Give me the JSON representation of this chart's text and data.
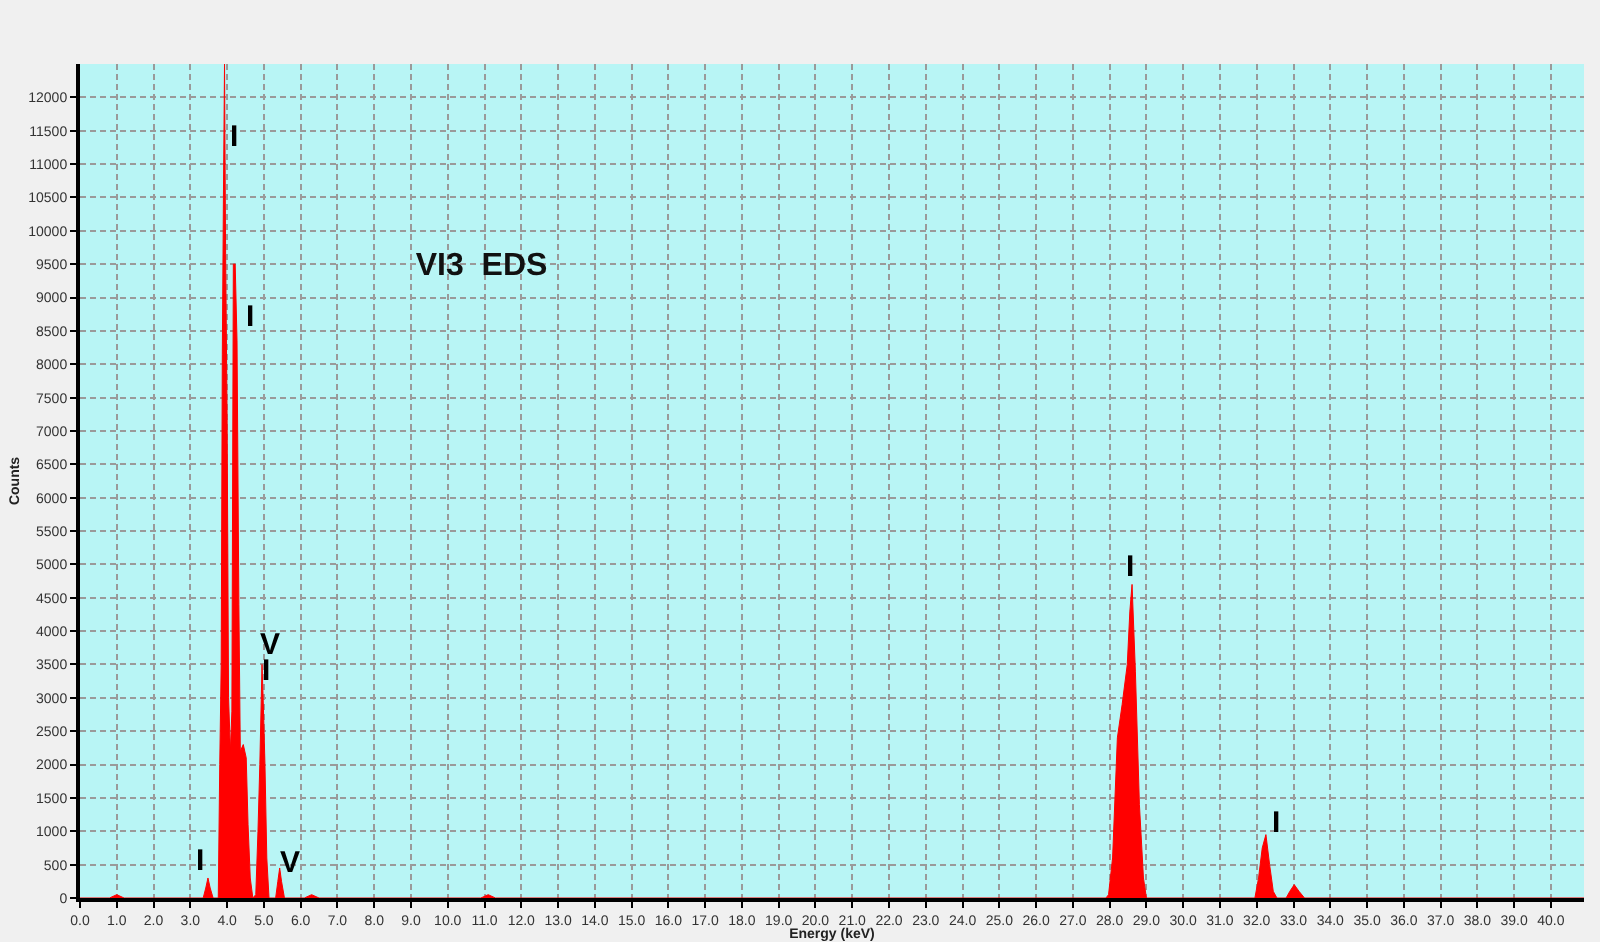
{
  "chart_data": {
    "type": "area",
    "title": "VI3  EDS",
    "xlabel": "Energy (keV)",
    "ylabel": "Counts",
    "x": [
      0.0,
      0.8,
      1.0,
      1.2,
      3.35,
      3.42,
      3.48,
      3.54,
      3.62,
      3.76,
      3.8,
      3.84,
      3.87,
      3.9,
      3.93,
      3.96,
      4.0,
      4.04,
      4.09,
      4.13,
      4.17,
      4.22,
      4.27,
      4.32,
      4.36,
      4.44,
      4.52,
      4.57,
      4.63,
      4.7,
      4.78,
      4.84,
      4.89,
      4.95,
      4.98,
      5.03,
      5.08,
      5.14,
      5.32,
      5.38,
      5.43,
      5.48,
      5.56,
      6.1,
      6.3,
      6.5,
      10.9,
      11.1,
      11.3,
      27.9,
      27.97,
      28.08,
      28.21,
      28.34,
      28.48,
      28.55,
      28.61,
      28.7,
      28.81,
      28.92,
      29.0,
      31.95,
      32.05,
      32.15,
      32.25,
      32.35,
      32.45,
      32.55,
      32.8,
      32.9,
      33.02,
      33.15,
      33.3,
      40.9
    ],
    "series": [
      {
        "color": "#ff0000",
        "values": [
          0,
          0,
          50,
          0,
          0,
          150,
          300,
          150,
          0,
          0,
          2000,
          3500,
          8150,
          10500,
          12500,
          9650,
          7200,
          3000,
          2200,
          2800,
          9500,
          9500,
          8350,
          4400,
          2200,
          2300,
          2100,
          1100,
          300,
          0,
          50,
          1000,
          2000,
          3500,
          3000,
          2000,
          600,
          0,
          0,
          250,
          450,
          250,
          0,
          0,
          50,
          0,
          0,
          50,
          0,
          0,
          50,
          600,
          2400,
          2900,
          3500,
          4300,
          4700,
          3400,
          1400,
          300,
          0,
          0,
          300,
          750,
          950,
          500,
          100,
          0,
          0,
          100,
          200,
          100,
          0,
          0
        ]
      }
    ],
    "xlim": [
      0,
      40.9
    ],
    "ylim": [
      0,
      12500
    ],
    "xticks": [
      {
        "value": 0,
        "label": "0.0"
      },
      {
        "value": 1,
        "label": "1.0"
      },
      {
        "value": 2,
        "label": "2.0"
      },
      {
        "value": 3,
        "label": "3.0"
      },
      {
        "value": 4,
        "label": "4.0"
      },
      {
        "value": 5,
        "label": "5.0"
      },
      {
        "value": 6,
        "label": "6.0"
      },
      {
        "value": 7,
        "label": "7.0"
      },
      {
        "value": 8,
        "label": "8.0"
      },
      {
        "value": 9,
        "label": "9.0"
      },
      {
        "value": 10,
        "label": "10.0"
      },
      {
        "value": 11,
        "label": "11.0"
      },
      {
        "value": 12,
        "label": "12.0"
      },
      {
        "value": 13,
        "label": "13.0"
      },
      {
        "value": 14,
        "label": "14.0"
      },
      {
        "value": 15,
        "label": "15.0"
      },
      {
        "value": 16,
        "label": "16.0"
      },
      {
        "value": 17,
        "label": "17.0"
      },
      {
        "value": 18,
        "label": "18.0"
      },
      {
        "value": 19,
        "label": "19.0"
      },
      {
        "value": 20,
        "label": "20.0"
      },
      {
        "value": 21,
        "label": "21.0"
      },
      {
        "value": 22,
        "label": "22.0"
      },
      {
        "value": 23,
        "label": "23.0"
      },
      {
        "value": 24,
        "label": "24.0"
      },
      {
        "value": 25,
        "label": "25.0"
      },
      {
        "value": 26,
        "label": "26.0"
      },
      {
        "value": 27,
        "label": "27.0"
      },
      {
        "value": 28,
        "label": "28.0"
      },
      {
        "value": 29,
        "label": "29.0"
      },
      {
        "value": 30,
        "label": "30.0"
      },
      {
        "value": 31,
        "label": "31.0"
      },
      {
        "value": 32,
        "label": "32.0"
      },
      {
        "value": 33,
        "label": "33.0"
      },
      {
        "value": 34,
        "label": "34.0"
      },
      {
        "value": 35,
        "label": "35.0"
      },
      {
        "value": 36,
        "label": "36.0"
      },
      {
        "value": 37,
        "label": "37.0"
      },
      {
        "value": 38,
        "label": "38.0"
      },
      {
        "value": 39,
        "label": "39.0"
      },
      {
        "value": 40,
        "label": "40.0"
      }
    ],
    "yticks": [
      0,
      500,
      1000,
      1500,
      2000,
      2500,
      3000,
      3500,
      4000,
      4500,
      5000,
      5500,
      6000,
      6500,
      7000,
      7500,
      8000,
      8500,
      9000,
      9500,
      10000,
      10500,
      11000,
      11500,
      12000
    ],
    "grid": true,
    "annotations": [
      {
        "text": "I",
        "x": 3.9,
        "y": 10500
      },
      {
        "text": "I",
        "x": 4.27,
        "y": 8350
      },
      {
        "text": "V",
        "x": 4.95,
        "y": 3500
      },
      {
        "text": "I",
        "x": 4.98,
        "y": 3000
      },
      {
        "text": "I",
        "x": 3.48,
        "y": 300
      },
      {
        "text": "V",
        "x": 5.43,
        "y": 450
      },
      {
        "text": "I",
        "x": 28.61,
        "y": 4700
      },
      {
        "text": "I",
        "x": 32.25,
        "y": 950
      }
    ]
  }
}
